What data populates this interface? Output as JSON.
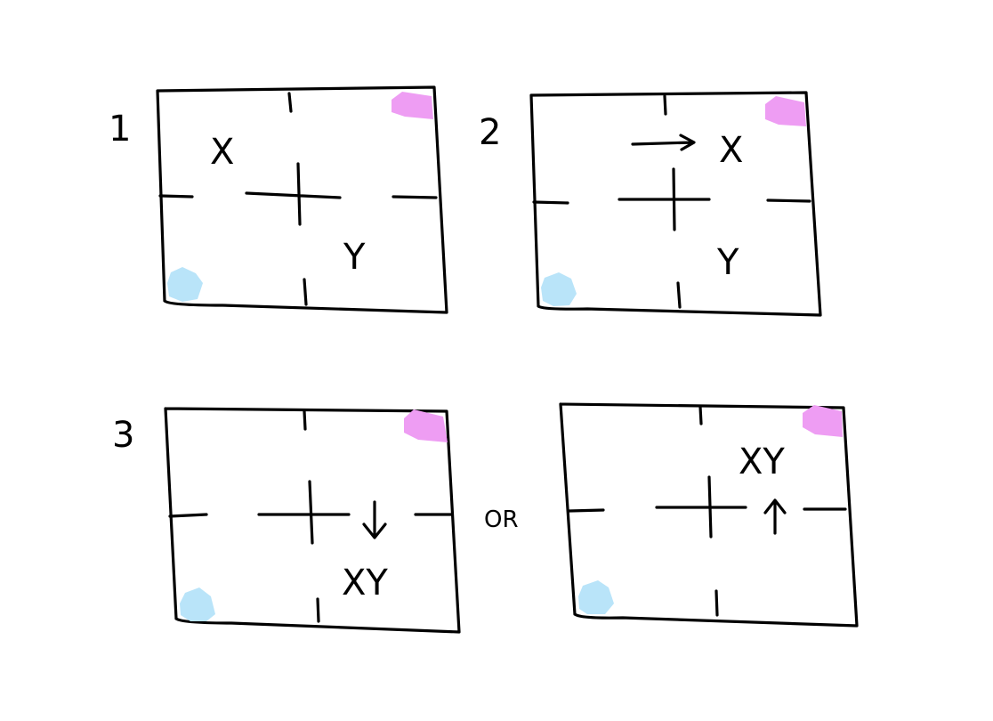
{
  "panels": [
    {
      "number": "1",
      "x_label": "X",
      "y_label": "Y"
    },
    {
      "number": "2",
      "x_label": "X",
      "y_label": "Y"
    },
    {
      "number": "3",
      "xy_label": "XY"
    },
    {
      "xy_label": "XY"
    }
  ],
  "connector_text": "OR",
  "colors": {
    "pink_marker": "#ee9df3",
    "blue_marker": "#b9e4f9",
    "ink": "#000000"
  }
}
